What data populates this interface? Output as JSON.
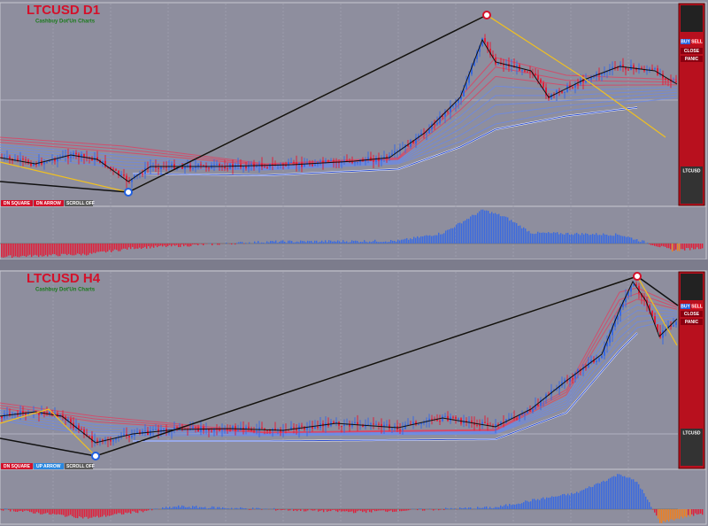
{
  "top_chart": {
    "symbol": "LTCUSD D1",
    "subtitle": "Cashbuy Dot'Un Charts",
    "buttons": [
      "DN SQUARE",
      "DN ARROW",
      "SCROLL OFF"
    ],
    "panel": {
      "buy": "BUY",
      "sell": "SELL",
      "close": "CLOSE",
      "panic": "PANIC",
      "symbol": "LTCUSD"
    }
  },
  "bottom_chart": {
    "symbol": "LTCUSD H4",
    "subtitle": "Cashbuy Dot'Un Charts",
    "buttons": [
      "DN SQUARE",
      "UP ARROW",
      "SCROLL OFF"
    ],
    "panel": {
      "buy": "BUY",
      "sell": "SELL",
      "close": "CLOSE",
      "panic": "PANIC",
      "symbol": "LTCUSD"
    }
  }
}
